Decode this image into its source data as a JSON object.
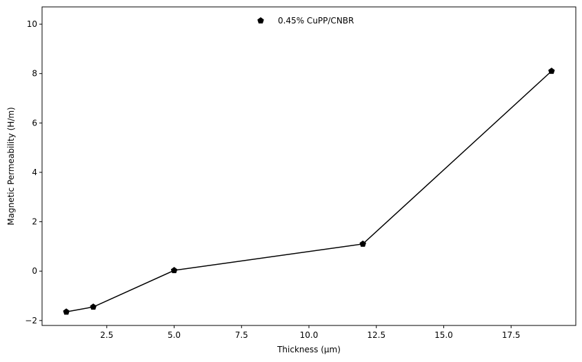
{
  "chart_data": {
    "type": "line",
    "title": "",
    "xlabel": "Thickness (µm)",
    "ylabel": "Magnetic Permeability (H/m)",
    "xlim": [
      0.1,
      19.9
    ],
    "ylim": [
      -2.2,
      10.7
    ],
    "xticks": [
      2.5,
      5.0,
      7.5,
      10.0,
      12.5,
      15.0,
      17.5
    ],
    "xtick_labels": [
      "2.5",
      "5.0",
      "7.5",
      "10.0",
      "12.5",
      "15.0",
      "17.5"
    ],
    "yticks": [
      -2,
      0,
      2,
      4,
      6,
      8,
      10
    ],
    "ytick_labels": [
      "−2",
      "0",
      "2",
      "4",
      "6",
      "8",
      "10"
    ],
    "grid": false,
    "legend_position": "top-center",
    "series": [
      {
        "name": "0.45% CuPP/CNBR",
        "x": [
          1,
          2,
          5,
          12,
          19
        ],
        "y": [
          -1.65,
          -1.45,
          0.03,
          1.1,
          8.1
        ],
        "color": "#000000",
        "marker": "pentagon"
      }
    ]
  }
}
